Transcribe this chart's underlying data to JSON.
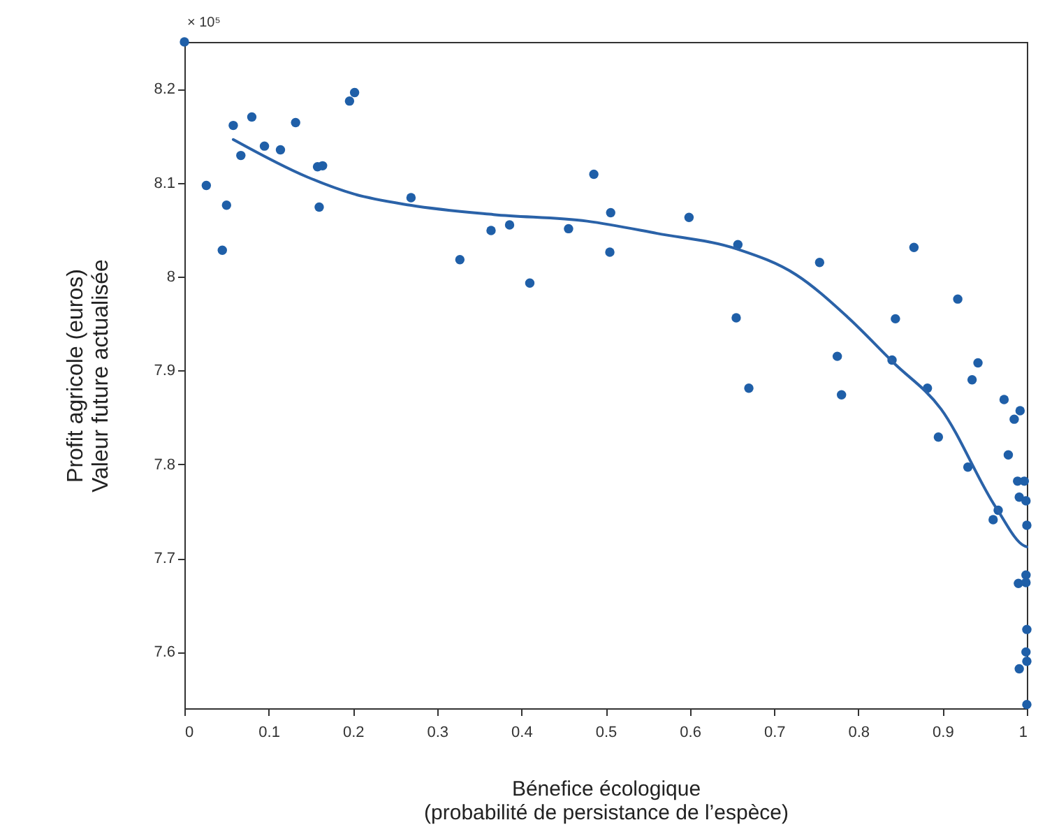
{
  "chart_data": {
    "type": "scatter",
    "xlabel": "Bénefice écologique\n(probabilité de persistance de l’espèce)",
    "ylabel": "Profit agricole (euros)\nValeur future actualisée",
    "annotations": [
      "× 10⁵"
    ],
    "xlim": [
      0,
      1
    ],
    "ylim": [
      7.54,
      8.25
    ],
    "xticks": [
      0,
      0.1,
      0.2,
      0.3,
      0.4,
      0.5,
      0.6,
      0.7,
      0.8,
      0.9,
      1
    ],
    "yticks": [
      7.6,
      7.7,
      7.8,
      7.9,
      8,
      8.1,
      8.2
    ],
    "grid": false,
    "series": [
      {
        "color": "#1f5fa8",
        "marker": "circle",
        "x": [
          0,
          0.026,
          0.05,
          0.045,
          0.058,
          0.08,
          0.067,
          0.095,
          0.114,
          0.132,
          0.158,
          0.164,
          0.16,
          0.196,
          0.202,
          0.269,
          0.327,
          0.364,
          0.386,
          0.41,
          0.456,
          0.486,
          0.506,
          0.505,
          0.599,
          0.657,
          0.655,
          0.67,
          0.754,
          0.775,
          0.78,
          0.866,
          0.844,
          0.84,
          0.882,
          0.895,
          0.918,
          0.942,
          0.935,
          0.93,
          0.973,
          0.992,
          0.985,
          0.978,
          0.989,
          0.997,
          0.991,
          0.999,
          1,
          0.96,
          0.966,
          0.999,
          0.999,
          0.99,
          1,
          0.999,
          1,
          0.991,
          1
        ],
        "values": [
          8.25,
          8.097,
          8.076,
          8.028,
          8.161,
          8.17,
          8.129,
          8.139,
          8.135,
          8.164,
          8.117,
          8.118,
          8.074,
          8.187,
          8.196,
          8.084,
          8.018,
          8.049,
          8.055,
          7.993,
          8.051,
          8.109,
          8.068,
          8.026,
          8.063,
          8.034,
          7.956,
          7.881,
          8.015,
          7.915,
          7.874,
          8.031,
          7.955,
          7.911,
          7.881,
          7.829,
          7.976,
          7.908,
          7.89,
          7.797,
          7.869,
          7.857,
          7.848,
          7.81,
          7.782,
          7.782,
          7.765,
          7.761,
          7.735,
          7.741,
          7.751,
          7.682,
          7.674,
          7.673,
          7.624,
          7.6,
          7.59,
          7.582,
          7.544
        ]
      },
      {
        "type": "line",
        "color": "#2a62a8",
        "marker": "none",
        "x": [
          0.058,
          0.146,
          0.201,
          0.268,
          0.367,
          0.478,
          0.561,
          0.657,
          0.726,
          0.787,
          0.842,
          0.898,
          0.964,
          0.997,
          1
        ],
        "values": [
          8.146,
          8.106,
          8.088,
          8.076,
          8.066,
          8.059,
          8.046,
          8.029,
          8.002,
          7.957,
          7.908,
          7.859,
          7.753,
          7.713,
          7.712
        ]
      }
    ]
  }
}
